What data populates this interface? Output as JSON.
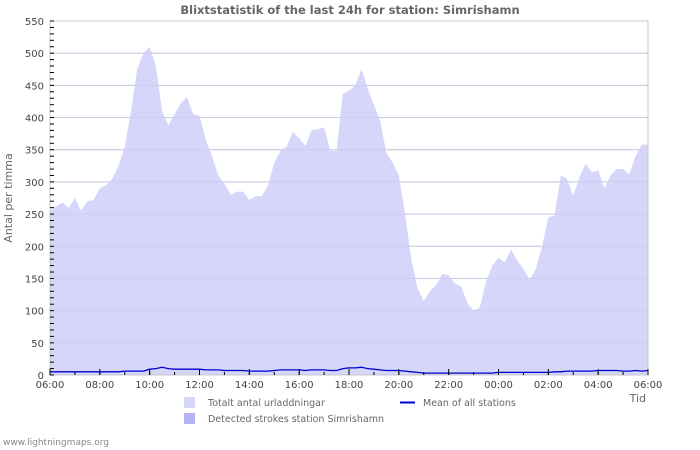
{
  "title": "Blixtstatistik of the last 24h for station: Simrishamn",
  "credit": "www.lightningmaps.org",
  "axes": {
    "ylabel": "Antal per timma",
    "xlabel": "Tid",
    "yticks": [
      "0",
      "50",
      "100",
      "150",
      "200",
      "250",
      "300",
      "350",
      "400",
      "450",
      "500",
      "550"
    ],
    "xticks": [
      "06:00",
      "08:00",
      "10:00",
      "12:00",
      "14:00",
      "16:00",
      "18:00",
      "20:00",
      "22:00",
      "00:00",
      "02:00",
      "04:00",
      "06:00"
    ]
  },
  "legend": [
    {
      "label": "Totalt antal urladdningar",
      "type": "area",
      "color": "#d6d6fa"
    },
    {
      "label": "Detected strokes station Simrishamn",
      "type": "area",
      "color": "#b3b3f5"
    },
    {
      "label": "Mean of all stations",
      "type": "line",
      "color": "#0000cc"
    }
  ],
  "colors": {
    "total_fill": "#d6d6fa",
    "detected_fill": "#b3b3f5",
    "mean_line": "#0000cc",
    "grid": "#cccccc",
    "axis_text": "#444444"
  },
  "chart_data": {
    "type": "area",
    "title": "Blixtstatistik of the last 24h for station: Simrishamn",
    "xlabel": "Tid",
    "ylabel": "Antal per timma",
    "ylim": [
      0,
      550
    ],
    "grid": true,
    "legend_position": "bottom",
    "x": [
      "06:00",
      "06:15",
      "06:30",
      "06:45",
      "07:00",
      "07:15",
      "07:30",
      "07:45",
      "08:00",
      "08:15",
      "08:30",
      "08:45",
      "09:00",
      "09:15",
      "09:30",
      "09:45",
      "10:00",
      "10:15",
      "10:30",
      "10:45",
      "11:00",
      "11:15",
      "11:30",
      "11:45",
      "12:00",
      "12:15",
      "12:30",
      "12:45",
      "13:00",
      "13:15",
      "13:30",
      "13:45",
      "14:00",
      "14:15",
      "14:30",
      "14:45",
      "15:00",
      "15:15",
      "15:30",
      "15:45",
      "16:00",
      "16:15",
      "16:30",
      "16:45",
      "17:00",
      "17:15",
      "17:30",
      "17:45",
      "18:00",
      "18:15",
      "18:30",
      "18:45",
      "19:00",
      "19:15",
      "19:30",
      "19:45",
      "20:00",
      "20:15",
      "20:30",
      "20:45",
      "21:00",
      "21:15",
      "21:30",
      "21:45",
      "22:00",
      "22:15",
      "22:30",
      "22:45",
      "23:00",
      "23:15",
      "23:30",
      "23:45",
      "00:00",
      "00:15",
      "00:30",
      "00:45",
      "01:00",
      "01:15",
      "01:30",
      "01:45",
      "02:00",
      "02:15",
      "02:30",
      "02:45",
      "03:00",
      "03:15",
      "03:30",
      "03:45",
      "04:00",
      "04:15",
      "04:30",
      "04:45",
      "05:00",
      "05:15",
      "05:30",
      "05:45",
      "06:00"
    ],
    "series": [
      {
        "name": "Totalt antal urladdningar",
        "values": [
          255,
          262,
          268,
          260,
          275,
          255,
          270,
          272,
          290,
          295,
          305,
          325,
          355,
          410,
          475,
          500,
          510,
          480,
          410,
          388,
          405,
          422,
          432,
          405,
          403,
          365,
          340,
          310,
          298,
          280,
          285,
          285,
          272,
          278,
          278,
          295,
          330,
          348,
          355,
          378,
          368,
          356,
          380,
          382,
          385,
          348,
          348,
          437,
          442,
          450,
          475,
          445,
          420,
          395,
          345,
          330,
          310,
          250,
          180,
          135,
          115,
          130,
          140,
          157,
          155,
          142,
          138,
          112,
          100,
          105,
          145,
          170,
          182,
          175,
          195,
          178,
          165,
          148,
          165,
          200,
          245,
          248,
          310,
          305,
          278,
          308,
          328,
          315,
          318,
          290,
          310,
          320,
          320,
          312,
          340,
          358,
          358
        ]
      },
      {
        "name": "Detected strokes station Simrishamn",
        "values": [
          0,
          0,
          0,
          0,
          0,
          0,
          0,
          0,
          0,
          0,
          0,
          0,
          0,
          0,
          0,
          0,
          0,
          0,
          0,
          0,
          0,
          0,
          0,
          0,
          0,
          0,
          0,
          0,
          0,
          0,
          0,
          0,
          0,
          0,
          0,
          0,
          0,
          0,
          0,
          0,
          0,
          0,
          0,
          0,
          0,
          0,
          0,
          0,
          0,
          0,
          0,
          0,
          0,
          0,
          0,
          0,
          0,
          0,
          0,
          0,
          0,
          0,
          0,
          0,
          0,
          0,
          0,
          0,
          0,
          0,
          0,
          0,
          0,
          0,
          0,
          0,
          0,
          0,
          0,
          0,
          0,
          0,
          0,
          0,
          0,
          0,
          0,
          0,
          0,
          0,
          0,
          0,
          0,
          0,
          0,
          0,
          0
        ]
      },
      {
        "name": "Mean of all stations",
        "values": [
          5,
          5,
          5,
          5,
          5,
          5,
          5,
          5,
          5,
          5,
          5,
          5,
          6,
          6,
          6,
          6,
          9,
          10,
          12,
          10,
          9,
          9,
          9,
          9,
          9,
          8,
          8,
          8,
          7,
          7,
          7,
          7,
          6,
          6,
          6,
          6,
          7,
          8,
          8,
          8,
          8,
          7,
          8,
          8,
          8,
          7,
          7,
          10,
          11,
          11,
          12,
          10,
          9,
          8,
          7,
          7,
          7,
          6,
          5,
          4,
          3,
          3,
          3,
          3,
          3,
          3,
          3,
          3,
          3,
          3,
          3,
          3,
          4,
          4,
          4,
          4,
          4,
          4,
          4,
          4,
          4,
          5,
          5,
          6,
          6,
          6,
          6,
          6,
          7,
          7,
          7,
          7,
          6,
          6,
          7,
          6,
          7
        ]
      }
    ]
  }
}
